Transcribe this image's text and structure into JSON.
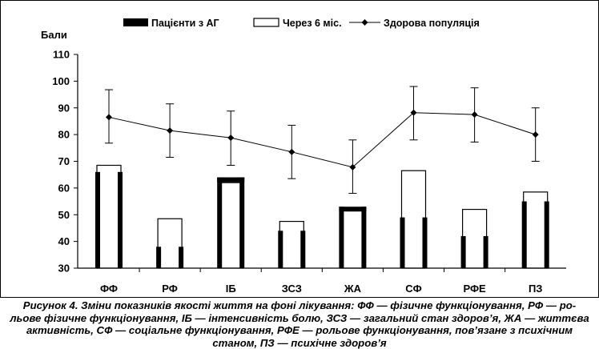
{
  "chart_data": {
    "type": "bar",
    "categories": [
      "ФФ",
      "РФ",
      "ІБ",
      "ЗСЗ",
      "ЖА",
      "СФ",
      "РФЕ",
      "ПЗ"
    ],
    "ylabel": "Бали",
    "ylim": [
      30,
      110
    ],
    "yticks": [
      30,
      40,
      50,
      60,
      70,
      80,
      90,
      100,
      110
    ],
    "grid": false,
    "legend_position": "top",
    "series": [
      {
        "name": "Пацієнти з АГ",
        "kind": "bar",
        "style": "filled",
        "color": "#000000",
        "values": [
          66,
          38,
          64,
          44,
          53,
          49,
          42,
          55
        ]
      },
      {
        "name": "Через 6 міс.",
        "kind": "bar",
        "style": "hollow",
        "color": "#000000",
        "values": [
          68.5,
          48.5,
          62,
          47.5,
          52,
          66.5,
          52,
          58.5
        ]
      },
      {
        "name": "Здорова популяція",
        "kind": "line",
        "marker": "diamond",
        "color": "#000000",
        "values": [
          86.5,
          81.5,
          78.8,
          73.5,
          67.8,
          88.2,
          87.5,
          80
        ],
        "error_low": [
          76.8,
          71.5,
          68.5,
          63.5,
          58,
          78,
          77.2,
          70
        ],
        "error_high": [
          96.8,
          91.5,
          88.8,
          83.5,
          78,
          98,
          97.5,
          90
        ]
      }
    ]
  },
  "caption": {
    "line1": "Рисунок 4. Зміни показників якості життя на фоні лікування: ФФ — фізичне функціонування, РФ — ро-",
    "line2": "льове фізичне функціонування, ІБ — інтенсивність болю, ЗСЗ — загальний стан здоров’я, ЖА — життєва",
    "line3": "активність, СФ — соціальне функціонування, РФЕ — рольове функціонування, пов’язане з психічним",
    "line4": "станом, ПЗ — психічне здоров’я"
  }
}
